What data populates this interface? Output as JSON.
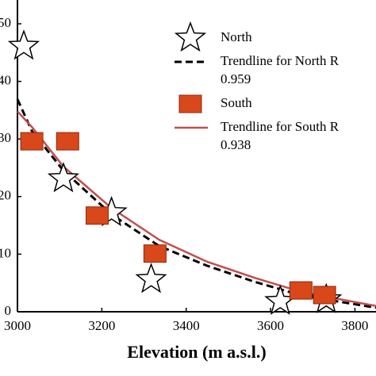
{
  "chart_data": {
    "type": "scatter",
    "x_label": "Elevation (m a.s.l.)",
    "xlim": [
      3000,
      3850
    ],
    "xticks": [
      3000,
      3200,
      3400,
      3600,
      3800
    ],
    "ylim": [
      0,
      50
    ],
    "yticks": [
      0,
      10,
      20,
      30,
      40,
      50
    ],
    "legend": "upper right",
    "series": [
      {
        "name": "North",
        "marker": "star",
        "color": "#ffffff",
        "x": [
          3015,
          3109,
          3223,
          3317,
          3623,
          3732
        ],
        "values": [
          46.1,
          23.1,
          17.2,
          5.6,
          1.8,
          2.1
        ]
      },
      {
        "name": "Trendline for North R",
        "r2": "0.959",
        "marker": "dashed",
        "color": "#000000",
        "x": [
          3000,
          3034,
          3109,
          3223,
          3336,
          3449,
          3562,
          3675,
          3850
        ],
        "values": [
          36.9,
          31.4,
          24.5,
          16.9,
          11.4,
          8.0,
          5.2,
          2.8,
          0.7
        ]
      },
      {
        "name": "South",
        "marker": "square",
        "color": "#d9481a",
        "x": [
          3034,
          3119,
          3189,
          3326,
          3672,
          3728
        ],
        "values": [
          29.6,
          29.6,
          16.7,
          10.1,
          3.7,
          2.9
        ]
      },
      {
        "name": "Trendline for South R",
        "r2": "0.938",
        "marker": "solid",
        "color": "#c0504d",
        "x": [
          3000,
          3034,
          3109,
          3223,
          3336,
          3449,
          3562,
          3675,
          3850
        ],
        "values": [
          34.8,
          32.1,
          25.2,
          18.0,
          12.5,
          8.7,
          5.9,
          3.4,
          1.0
        ]
      }
    ]
  }
}
